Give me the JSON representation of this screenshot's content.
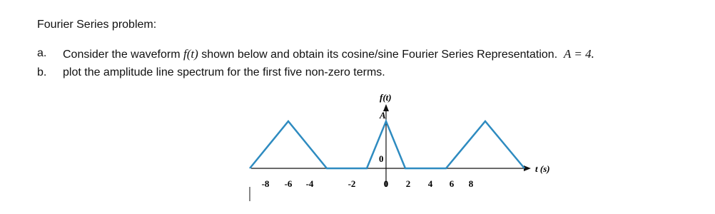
{
  "header": {
    "title": "Fourier Series problem:"
  },
  "items": [
    {
      "marker": "a.",
      "text_before": "Consider the waveform ",
      "math_1": "f(t)",
      "text_middle": " shown below and obtain its cosine/sine Fourier Series Representation.",
      "math_2": "A = 4."
    },
    {
      "marker": "b.",
      "text": "plot the amplitude line spectrum for the first five non-zero terms."
    }
  ],
  "figure": {
    "y_label": "f(t)",
    "peak_label": "A",
    "origin_label": "0",
    "x_label": "t (s)",
    "x_tick_labels": [
      "-8",
      "-6",
      "-4",
      "-2",
      "0",
      "2",
      "4",
      "6",
      "8"
    ]
  }
}
